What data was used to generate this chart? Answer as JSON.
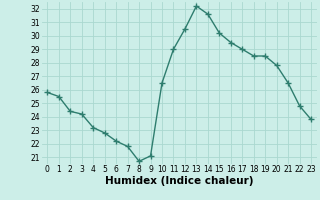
{
  "x": [
    0,
    1,
    2,
    3,
    4,
    5,
    6,
    7,
    8,
    9,
    10,
    11,
    12,
    13,
    14,
    15,
    16,
    17,
    18,
    19,
    20,
    21,
    22,
    23
  ],
  "y": [
    25.8,
    25.5,
    24.4,
    24.2,
    23.2,
    22.8,
    22.2,
    21.8,
    20.7,
    21.1,
    26.5,
    29.0,
    30.5,
    32.2,
    31.6,
    30.2,
    29.5,
    29.0,
    28.5,
    28.5,
    27.8,
    26.5,
    24.8,
    23.8
  ],
  "line_color": "#2e7d6e",
  "marker": "+",
  "marker_size": 4,
  "bg_color": "#cceee8",
  "grid_color": "#aad8d0",
  "xlabel": "Humidex (Indice chaleur)",
  "xlim": [
    -0.5,
    23.5
  ],
  "ylim": [
    20.5,
    32.5
  ],
  "xticks": [
    0,
    1,
    2,
    3,
    4,
    5,
    6,
    7,
    8,
    9,
    10,
    11,
    12,
    13,
    14,
    15,
    16,
    17,
    18,
    19,
    20,
    21,
    22,
    23
  ],
  "yticks": [
    21,
    22,
    23,
    24,
    25,
    26,
    27,
    28,
    29,
    30,
    31,
    32
  ],
  "tick_fontsize": 5.5,
  "xlabel_fontsize": 7.5,
  "line_width": 1.0,
  "marker_edge_width": 1.0
}
